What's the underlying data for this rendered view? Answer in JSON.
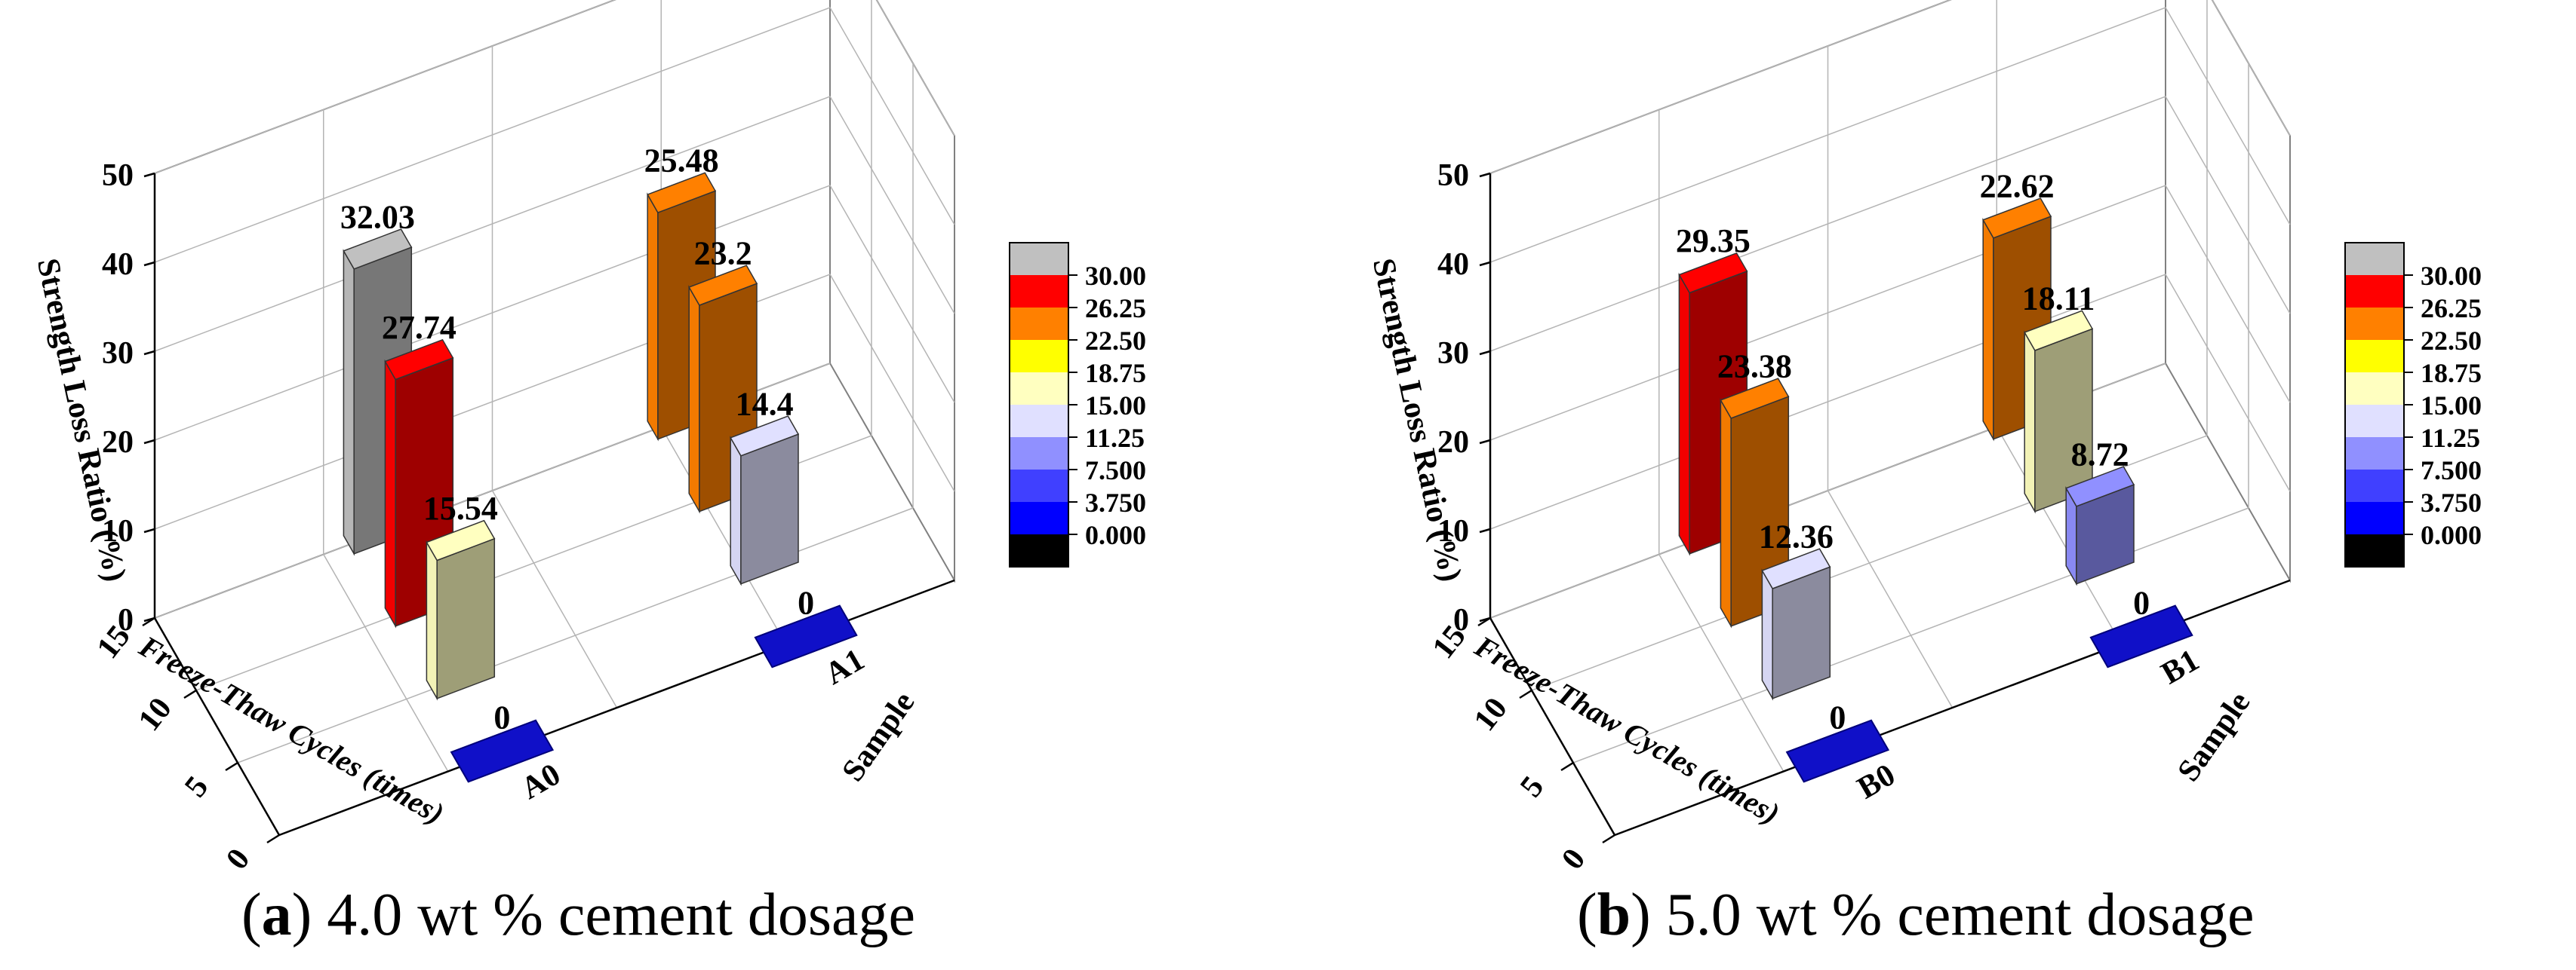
{
  "chart_data": [
    {
      "type": "bar3d",
      "panel": "a",
      "caption_letter": "a",
      "caption_text": "4.0 wt % cement dosage",
      "zlabel": "Strength Loss Ratio (%)",
      "ylabel": "Freeze-Thaw Cycles (times)",
      "xlabel": "Sample",
      "zticks": [
        "0",
        "10",
        "20",
        "30",
        "40",
        "50"
      ],
      "yticks": [
        "0",
        "5",
        "10",
        "15"
      ],
      "samples": [
        "A0",
        "A1"
      ],
      "cycles": [
        0,
        5,
        10,
        15
      ],
      "zlim": [
        0,
        50
      ],
      "series": [
        {
          "name": "A0",
          "values": [
            0,
            15.54,
            27.74,
            32.03
          ],
          "labels": [
            "0",
            "15.54",
            "27.74",
            "32.03"
          ]
        },
        {
          "name": "A1",
          "values": [
            0,
            14.4,
            23.2,
            25.48
          ],
          "labels": [
            "0",
            "14.4",
            "23.2",
            "25.48"
          ]
        }
      ]
    },
    {
      "type": "bar3d",
      "panel": "b",
      "caption_letter": "b",
      "caption_text": "5.0 wt % cement dosage",
      "zlabel": "Strength Loss Ratio (%)",
      "ylabel": "Freeze-Thaw Cycles (times)",
      "xlabel": "Sample",
      "zticks": [
        "0",
        "10",
        "20",
        "30",
        "40",
        "50"
      ],
      "yticks": [
        "0",
        "5",
        "10",
        "15"
      ],
      "samples": [
        "B0",
        "B1"
      ],
      "cycles": [
        0,
        5,
        10,
        15
      ],
      "zlim": [
        0,
        50
      ],
      "series": [
        {
          "name": "B0",
          "values": [
            0,
            12.36,
            23.38,
            29.35
          ],
          "labels": [
            "0",
            "12.36",
            "23.38",
            "29.35"
          ]
        },
        {
          "name": "B1",
          "values": [
            0,
            8.72,
            18.11,
            22.62
          ],
          "labels": [
            "0",
            "8.72",
            "18.11",
            "22.62"
          ]
        }
      ]
    }
  ],
  "colorbar": {
    "labels": [
      "30.00",
      "26.25",
      "22.50",
      "18.75",
      "15.00",
      "11.25",
      "7.500",
      "3.750",
      "0.000"
    ],
    "colors": [
      "#c0c0c0",
      "#ff0000",
      "#ff8000",
      "#ffff00",
      "#ffffc0",
      "#e0e0ff",
      "#9090ff",
      "#4040ff",
      "#0000ff",
      "#000000"
    ]
  }
}
